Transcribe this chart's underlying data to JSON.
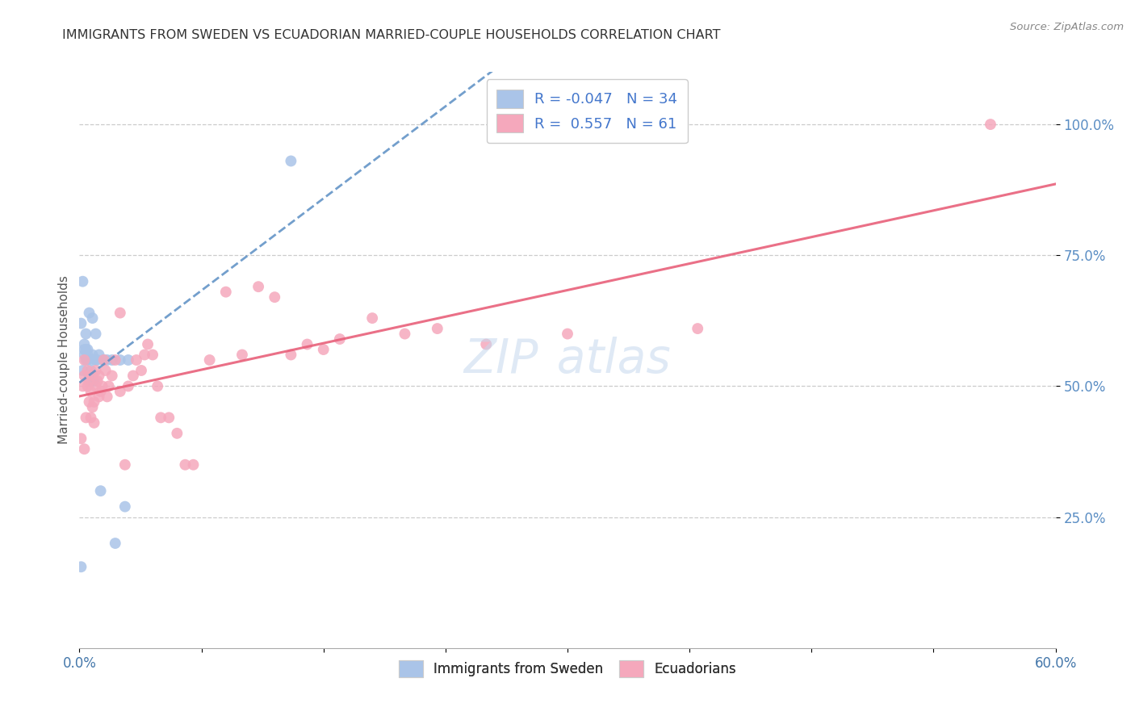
{
  "title": "IMMIGRANTS FROM SWEDEN VS ECUADORIAN MARRIED-COUPLE HOUSEHOLDS CORRELATION CHART",
  "source": "Source: ZipAtlas.com",
  "ylabel": "Married-couple Households",
  "xlim": [
    0.0,
    0.6
  ],
  "ylim": [
    0.0,
    1.1
  ],
  "legend_sweden_R": -0.047,
  "legend_sweden_N": 34,
  "legend_ecuador_R": 0.557,
  "legend_ecuador_N": 61,
  "sweden_color": "#aac4e8",
  "ecuador_color": "#f5a8bc",
  "sweden_line_color": "#5b8ec4",
  "ecuador_line_color": "#e8607a",
  "watermark_color": "#c5d8ee",
  "watermark_text": "ZIPAtlas",
  "background_color": "#ffffff",
  "grid_color": "#cccccc",
  "right_tick_color": "#5b8ec4",
  "sweden_x": [
    0.001,
    0.001,
    0.002,
    0.002,
    0.003,
    0.003,
    0.003,
    0.004,
    0.004,
    0.004,
    0.005,
    0.005,
    0.005,
    0.006,
    0.006,
    0.007,
    0.007,
    0.008,
    0.008,
    0.008,
    0.009,
    0.01,
    0.01,
    0.011,
    0.012,
    0.013,
    0.015,
    0.017,
    0.02,
    0.022,
    0.025,
    0.028,
    0.03,
    0.13
  ],
  "sweden_y": [
    0.62,
    0.155,
    0.7,
    0.53,
    0.56,
    0.57,
    0.58,
    0.55,
    0.57,
    0.6,
    0.57,
    0.55,
    0.56,
    0.64,
    0.52,
    0.53,
    0.51,
    0.56,
    0.55,
    0.63,
    0.51,
    0.6,
    0.55,
    0.55,
    0.56,
    0.3,
    0.55,
    0.55,
    0.55,
    0.2,
    0.55,
    0.27,
    0.55,
    0.93
  ],
  "ecuador_x": [
    0.001,
    0.002,
    0.003,
    0.003,
    0.004,
    0.005,
    0.005,
    0.006,
    0.006,
    0.007,
    0.007,
    0.008,
    0.008,
    0.009,
    0.009,
    0.01,
    0.01,
    0.011,
    0.012,
    0.012,
    0.013,
    0.014,
    0.015,
    0.016,
    0.017,
    0.018,
    0.02,
    0.022,
    0.025,
    0.025,
    0.028,
    0.03,
    0.033,
    0.035,
    0.038,
    0.04,
    0.042,
    0.045,
    0.048,
    0.05,
    0.055,
    0.06,
    0.065,
    0.07,
    0.08,
    0.09,
    0.1,
    0.11,
    0.12,
    0.13,
    0.14,
    0.15,
    0.16,
    0.18,
    0.2,
    0.22,
    0.25,
    0.3,
    0.38,
    0.56,
    0.003
  ],
  "ecuador_y": [
    0.4,
    0.5,
    0.55,
    0.52,
    0.44,
    0.53,
    0.5,
    0.51,
    0.47,
    0.49,
    0.44,
    0.52,
    0.46,
    0.43,
    0.47,
    0.53,
    0.5,
    0.51,
    0.52,
    0.48,
    0.49,
    0.5,
    0.55,
    0.53,
    0.48,
    0.5,
    0.52,
    0.55,
    0.49,
    0.64,
    0.35,
    0.5,
    0.52,
    0.55,
    0.53,
    0.56,
    0.58,
    0.56,
    0.5,
    0.44,
    0.44,
    0.41,
    0.35,
    0.35,
    0.55,
    0.68,
    0.56,
    0.69,
    0.67,
    0.56,
    0.58,
    0.57,
    0.59,
    0.63,
    0.6,
    0.61,
    0.58,
    0.6,
    0.61,
    1.0,
    0.38
  ]
}
